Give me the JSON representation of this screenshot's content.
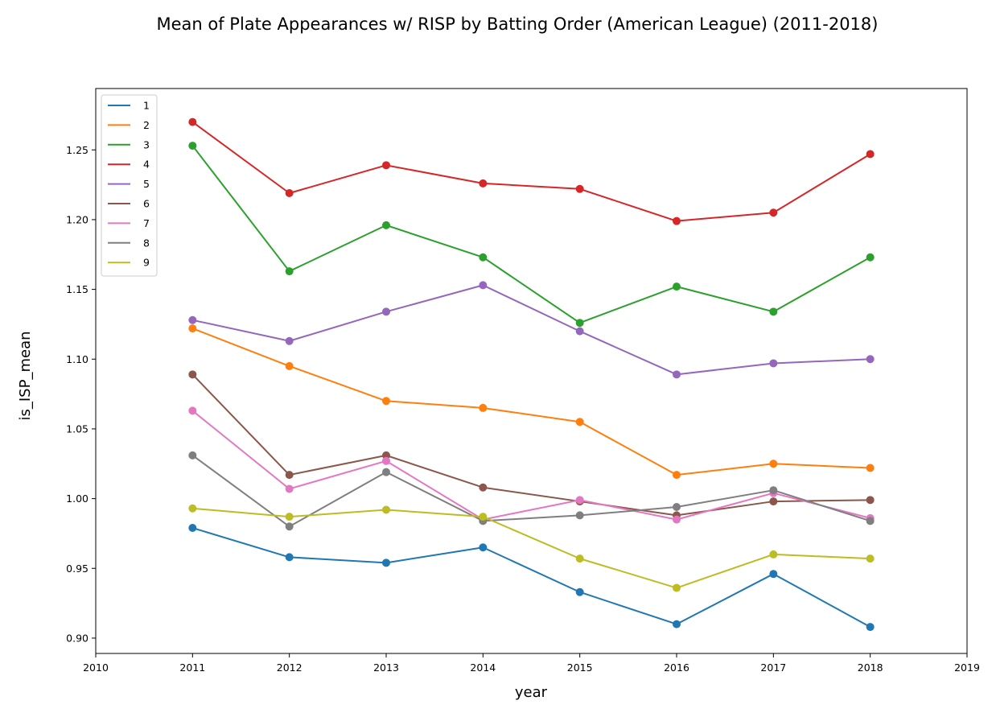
{
  "chart_data": {
    "type": "line",
    "title": "Mean of Plate Appearances w/ RISP by Batting Order (American League) (2011-2018)",
    "xlabel": "year",
    "ylabel": "is_ISP_mean",
    "xlim": [
      2010,
      2019
    ],
    "ylim": [
      0.889,
      1.294
    ],
    "xticks": [
      "2010",
      "2011",
      "2012",
      "2013",
      "2014",
      "2015",
      "2016",
      "2017",
      "2018",
      "2019"
    ],
    "yticks": [
      "0.90",
      "0.95",
      "1.00",
      "1.05",
      "1.10",
      "1.15",
      "1.20",
      "1.25"
    ],
    "grid": false,
    "legend": "upper-left",
    "x": [
      2011,
      2012,
      2013,
      2014,
      2015,
      2016,
      2017,
      2018
    ],
    "series": [
      {
        "name": "1",
        "color": "#1f77b4",
        "values": [
          0.979,
          0.958,
          0.954,
          0.965,
          0.933,
          0.91,
          0.946,
          0.908
        ]
      },
      {
        "name": "2",
        "color": "#ff7f0e",
        "values": [
          1.122,
          1.095,
          1.07,
          1.065,
          1.055,
          1.017,
          1.025,
          1.022
        ]
      },
      {
        "name": "3",
        "color": "#2ca02c",
        "values": [
          1.253,
          1.163,
          1.196,
          1.173,
          1.126,
          1.152,
          1.134,
          1.173
        ]
      },
      {
        "name": "4",
        "color": "#d62728",
        "values": [
          1.27,
          1.219,
          1.239,
          1.226,
          1.222,
          1.199,
          1.205,
          1.247
        ]
      },
      {
        "name": "5",
        "color": "#9467bd",
        "values": [
          1.128,
          1.113,
          1.134,
          1.153,
          1.12,
          1.089,
          1.097,
          1.1
        ]
      },
      {
        "name": "6",
        "color": "#8c564b",
        "values": [
          1.089,
          1.017,
          1.031,
          1.008,
          0.998,
          0.988,
          0.998,
          0.999
        ]
      },
      {
        "name": "7",
        "color": "#e377c2",
        "values": [
          1.063,
          1.007,
          1.027,
          0.985,
          0.999,
          0.985,
          1.004,
          0.986
        ]
      },
      {
        "name": "8",
        "color": "#7f7f7f",
        "values": [
          1.031,
          0.98,
          1.019,
          0.984,
          0.988,
          0.994,
          1.006,
          0.984
        ]
      },
      {
        "name": "9",
        "color": "#bcbd22",
        "values": [
          0.993,
          0.987,
          0.992,
          0.987,
          0.957,
          0.936,
          0.96,
          0.957
        ]
      }
    ]
  }
}
